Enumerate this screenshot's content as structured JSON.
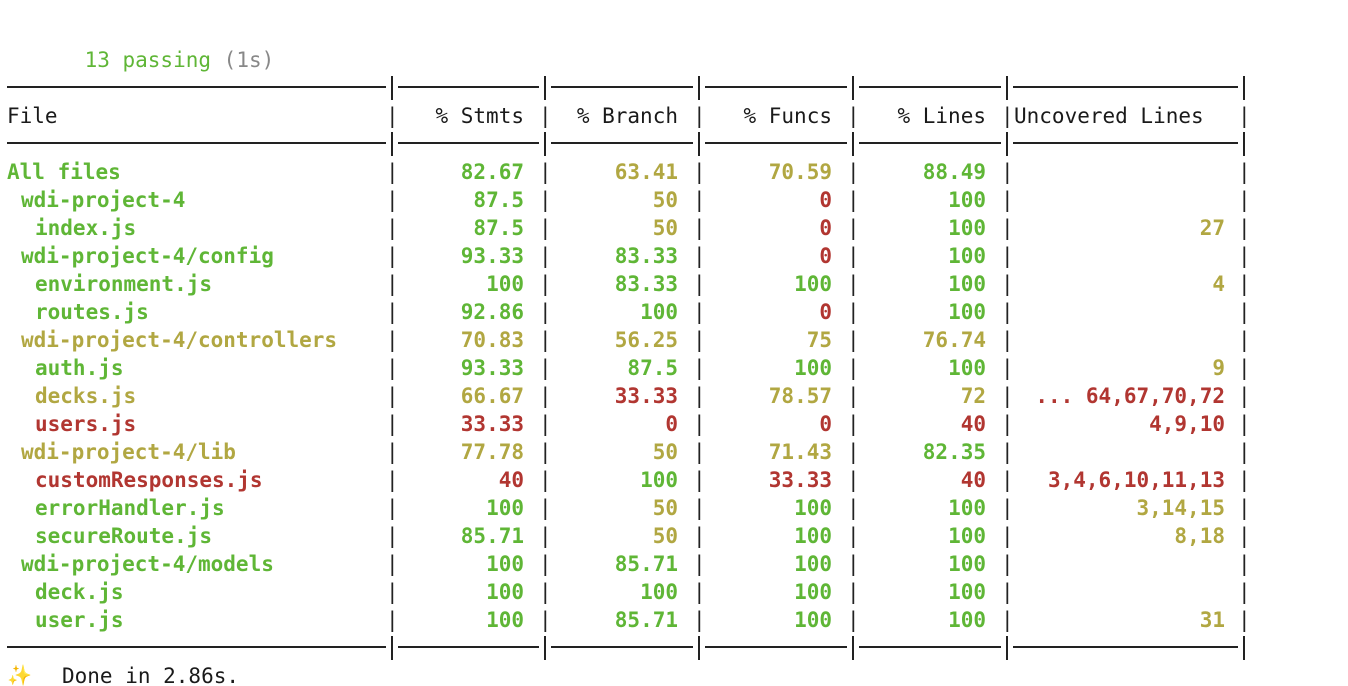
{
  "summary": {
    "count": "13 passing",
    "duration": "(1s)"
  },
  "table": {
    "headers": [
      "File",
      "% Stmts",
      "% Branch",
      "% Funcs",
      "% Lines",
      "Uncovered Lines"
    ],
    "rows": [
      {
        "file": "All files",
        "indent": 0,
        "file_color": "green",
        "stmts": "82.67",
        "stmts_color": "green",
        "branch": "63.41",
        "branch_color": "yellow",
        "funcs": "70.59",
        "funcs_color": "yellow",
        "lines": "88.49",
        "lines_color": "green",
        "uncovered": "",
        "uncovered_color": "green"
      },
      {
        "file": "wdi-project-4",
        "indent": 1,
        "file_color": "green",
        "stmts": "87.5",
        "stmts_color": "green",
        "branch": "50",
        "branch_color": "yellow",
        "funcs": "0",
        "funcs_color": "red",
        "lines": "100",
        "lines_color": "green",
        "uncovered": "",
        "uncovered_color": "green"
      },
      {
        "file": "index.js",
        "indent": 2,
        "file_color": "green",
        "stmts": "87.5",
        "stmts_color": "green",
        "branch": "50",
        "branch_color": "yellow",
        "funcs": "0",
        "funcs_color": "red",
        "lines": "100",
        "lines_color": "green",
        "uncovered": "27",
        "uncovered_color": "yellow"
      },
      {
        "file": "wdi-project-4/config",
        "indent": 1,
        "file_color": "green",
        "stmts": "93.33",
        "stmts_color": "green",
        "branch": "83.33",
        "branch_color": "green",
        "funcs": "0",
        "funcs_color": "red",
        "lines": "100",
        "lines_color": "green",
        "uncovered": "",
        "uncovered_color": "green"
      },
      {
        "file": "environment.js",
        "indent": 2,
        "file_color": "green",
        "stmts": "100",
        "stmts_color": "green",
        "branch": "83.33",
        "branch_color": "green",
        "funcs": "100",
        "funcs_color": "green",
        "lines": "100",
        "lines_color": "green",
        "uncovered": "4",
        "uncovered_color": "yellow"
      },
      {
        "file": "routes.js",
        "indent": 2,
        "file_color": "green",
        "stmts": "92.86",
        "stmts_color": "green",
        "branch": "100",
        "branch_color": "green",
        "funcs": "0",
        "funcs_color": "red",
        "lines": "100",
        "lines_color": "green",
        "uncovered": "",
        "uncovered_color": "green"
      },
      {
        "file": "wdi-project-4/controllers",
        "indent": 1,
        "file_color": "yellow",
        "stmts": "70.83",
        "stmts_color": "yellow",
        "branch": "56.25",
        "branch_color": "yellow",
        "funcs": "75",
        "funcs_color": "yellow",
        "lines": "76.74",
        "lines_color": "yellow",
        "uncovered": "",
        "uncovered_color": "green"
      },
      {
        "file": "auth.js",
        "indent": 2,
        "file_color": "green",
        "stmts": "93.33",
        "stmts_color": "green",
        "branch": "87.5",
        "branch_color": "green",
        "funcs": "100",
        "funcs_color": "green",
        "lines": "100",
        "lines_color": "green",
        "uncovered": "9",
        "uncovered_color": "yellow"
      },
      {
        "file": "decks.js",
        "indent": 2,
        "file_color": "yellow",
        "stmts": "66.67",
        "stmts_color": "yellow",
        "branch": "33.33",
        "branch_color": "red",
        "funcs": "78.57",
        "funcs_color": "yellow",
        "lines": "72",
        "lines_color": "yellow",
        "uncovered": "... 64,67,70,72",
        "uncovered_color": "red"
      },
      {
        "file": "users.js",
        "indent": 2,
        "file_color": "red",
        "stmts": "33.33",
        "stmts_color": "red",
        "branch": "0",
        "branch_color": "red",
        "funcs": "0",
        "funcs_color": "red",
        "lines": "40",
        "lines_color": "red",
        "uncovered": "4,9,10",
        "uncovered_color": "red"
      },
      {
        "file": "wdi-project-4/lib",
        "indent": 1,
        "file_color": "yellow",
        "stmts": "77.78",
        "stmts_color": "yellow",
        "branch": "50",
        "branch_color": "yellow",
        "funcs": "71.43",
        "funcs_color": "yellow",
        "lines": "82.35",
        "lines_color": "green",
        "uncovered": "",
        "uncovered_color": "green"
      },
      {
        "file": "customResponses.js",
        "indent": 2,
        "file_color": "red",
        "stmts": "40",
        "stmts_color": "red",
        "branch": "100",
        "branch_color": "green",
        "funcs": "33.33",
        "funcs_color": "red",
        "lines": "40",
        "lines_color": "red",
        "uncovered": "3,4,6,10,11,13",
        "uncovered_color": "red"
      },
      {
        "file": "errorHandler.js",
        "indent": 2,
        "file_color": "green",
        "stmts": "100",
        "stmts_color": "green",
        "branch": "50",
        "branch_color": "yellow",
        "funcs": "100",
        "funcs_color": "green",
        "lines": "100",
        "lines_color": "green",
        "uncovered": "3,14,15",
        "uncovered_color": "yellow"
      },
      {
        "file": "secureRoute.js",
        "indent": 2,
        "file_color": "green",
        "stmts": "85.71",
        "stmts_color": "green",
        "branch": "50",
        "branch_color": "yellow",
        "funcs": "100",
        "funcs_color": "green",
        "lines": "100",
        "lines_color": "green",
        "uncovered": "8,18",
        "uncovered_color": "yellow"
      },
      {
        "file": "wdi-project-4/models",
        "indent": 1,
        "file_color": "green",
        "stmts": "100",
        "stmts_color": "green",
        "branch": "85.71",
        "branch_color": "green",
        "funcs": "100",
        "funcs_color": "green",
        "lines": "100",
        "lines_color": "green",
        "uncovered": "",
        "uncovered_color": "green"
      },
      {
        "file": "deck.js",
        "indent": 2,
        "file_color": "green",
        "stmts": "100",
        "stmts_color": "green",
        "branch": "100",
        "branch_color": "green",
        "funcs": "100",
        "funcs_color": "green",
        "lines": "100",
        "lines_color": "green",
        "uncovered": "",
        "uncovered_color": "green"
      },
      {
        "file": "user.js",
        "indent": 2,
        "file_color": "green",
        "stmts": "100",
        "stmts_color": "green",
        "branch": "85.71",
        "branch_color": "green",
        "funcs": "100",
        "funcs_color": "green",
        "lines": "100",
        "lines_color": "green",
        "uncovered": "31",
        "uncovered_color": "yellow"
      }
    ]
  },
  "footer": {
    "icon": "sparkles-icon",
    "text": "Done in 2.86s."
  },
  "colors": {
    "green": "#5fb636",
    "yellow": "#b1a742",
    "red": "#b13631",
    "grey": "#888888"
  }
}
